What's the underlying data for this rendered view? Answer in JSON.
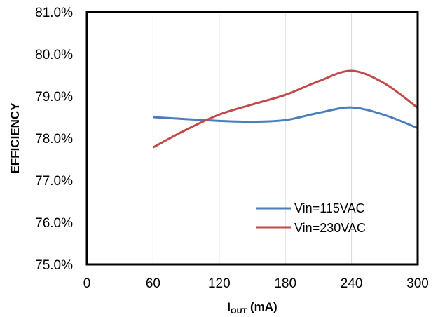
{
  "chart_data": {
    "type": "line",
    "xlabel_main": "I",
    "xlabel_sub": "OUT",
    "xlabel_unit": " (mA)",
    "ylabel": "EFFICIENCY",
    "xlim": [
      0,
      300
    ],
    "ylim": [
      75.0,
      81.0
    ],
    "x_ticks": [
      0,
      60,
      120,
      180,
      240,
      300
    ],
    "x_tick_labels": [
      "0",
      "60",
      "120",
      "180",
      "240",
      "300"
    ],
    "y_ticks": [
      75.0,
      76.0,
      77.0,
      78.0,
      79.0,
      80.0,
      81.0
    ],
    "y_tick_labels": [
      "75.0%",
      "76.0%",
      "77.0%",
      "78.0%",
      "79.0%",
      "80.0%",
      "81.0%"
    ],
    "grid": "vertical",
    "legend_position": "lower-right",
    "series": [
      {
        "name": "Vin=115VAC",
        "color": "#4a7ebb",
        "x": [
          60,
          120,
          150,
          180,
          210,
          240,
          270,
          300
        ],
        "y": [
          78.5,
          78.41,
          78.39,
          78.43,
          78.6,
          78.73,
          78.55,
          78.24
        ]
      },
      {
        "name": "Vin=230VAC",
        "color": "#be4b48",
        "x": [
          60,
          90,
          120,
          150,
          180,
          210,
          240,
          270,
          300
        ],
        "y": [
          77.78,
          78.2,
          78.56,
          78.8,
          79.03,
          79.35,
          79.6,
          79.3,
          78.72
        ]
      }
    ]
  }
}
